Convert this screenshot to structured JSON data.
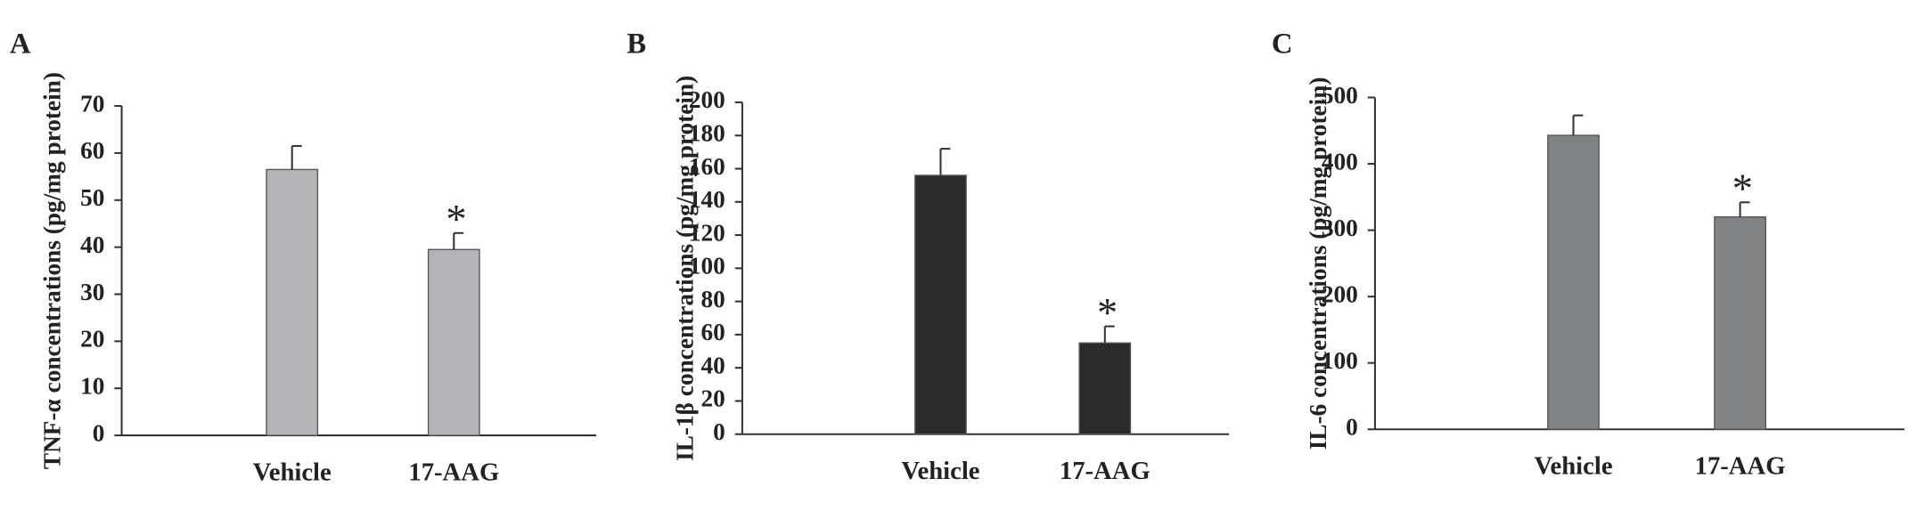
{
  "chart_data": [
    {
      "type": "bar",
      "panel_label": "A",
      "ylabel": "TNF-α  concentrations (pg/mg protein)",
      "categories": [
        "Vehicle",
        "17-AAG"
      ],
      "values": [
        56.5,
        39.5
      ],
      "errors": [
        5,
        3.5
      ],
      "annotations": [
        null,
        "*"
      ],
      "color": "#b4b4b8",
      "ylim": [
        0,
        70
      ],
      "yticks": [
        0,
        10,
        20,
        30,
        40,
        50,
        60,
        70
      ]
    },
    {
      "type": "bar",
      "panel_label": "B",
      "ylabel": "IL-1β  concentrations (pg/mg protein)",
      "categories": [
        "Vehicle",
        "17-AAG"
      ],
      "values": [
        156,
        55
      ],
      "errors": [
        16,
        10
      ],
      "annotations": [
        null,
        "*"
      ],
      "color": "#2b2b2b",
      "ylim": [
        0,
        200
      ],
      "yticks": [
        0,
        20,
        40,
        60,
        80,
        100,
        120,
        140,
        160,
        180,
        200
      ]
    },
    {
      "type": "bar",
      "panel_label": "C",
      "ylabel": "IL-6 concentrations (pg/mg protein)",
      "categories": [
        "Vehicle",
        "17-AAG"
      ],
      "values": [
        443,
        320
      ],
      "errors": [
        30,
        22
      ],
      "annotations": [
        null,
        "*"
      ],
      "color": "#808284",
      "ylim": [
        0,
        500
      ],
      "yticks": [
        0,
        100,
        200,
        300,
        400,
        500
      ]
    }
  ]
}
